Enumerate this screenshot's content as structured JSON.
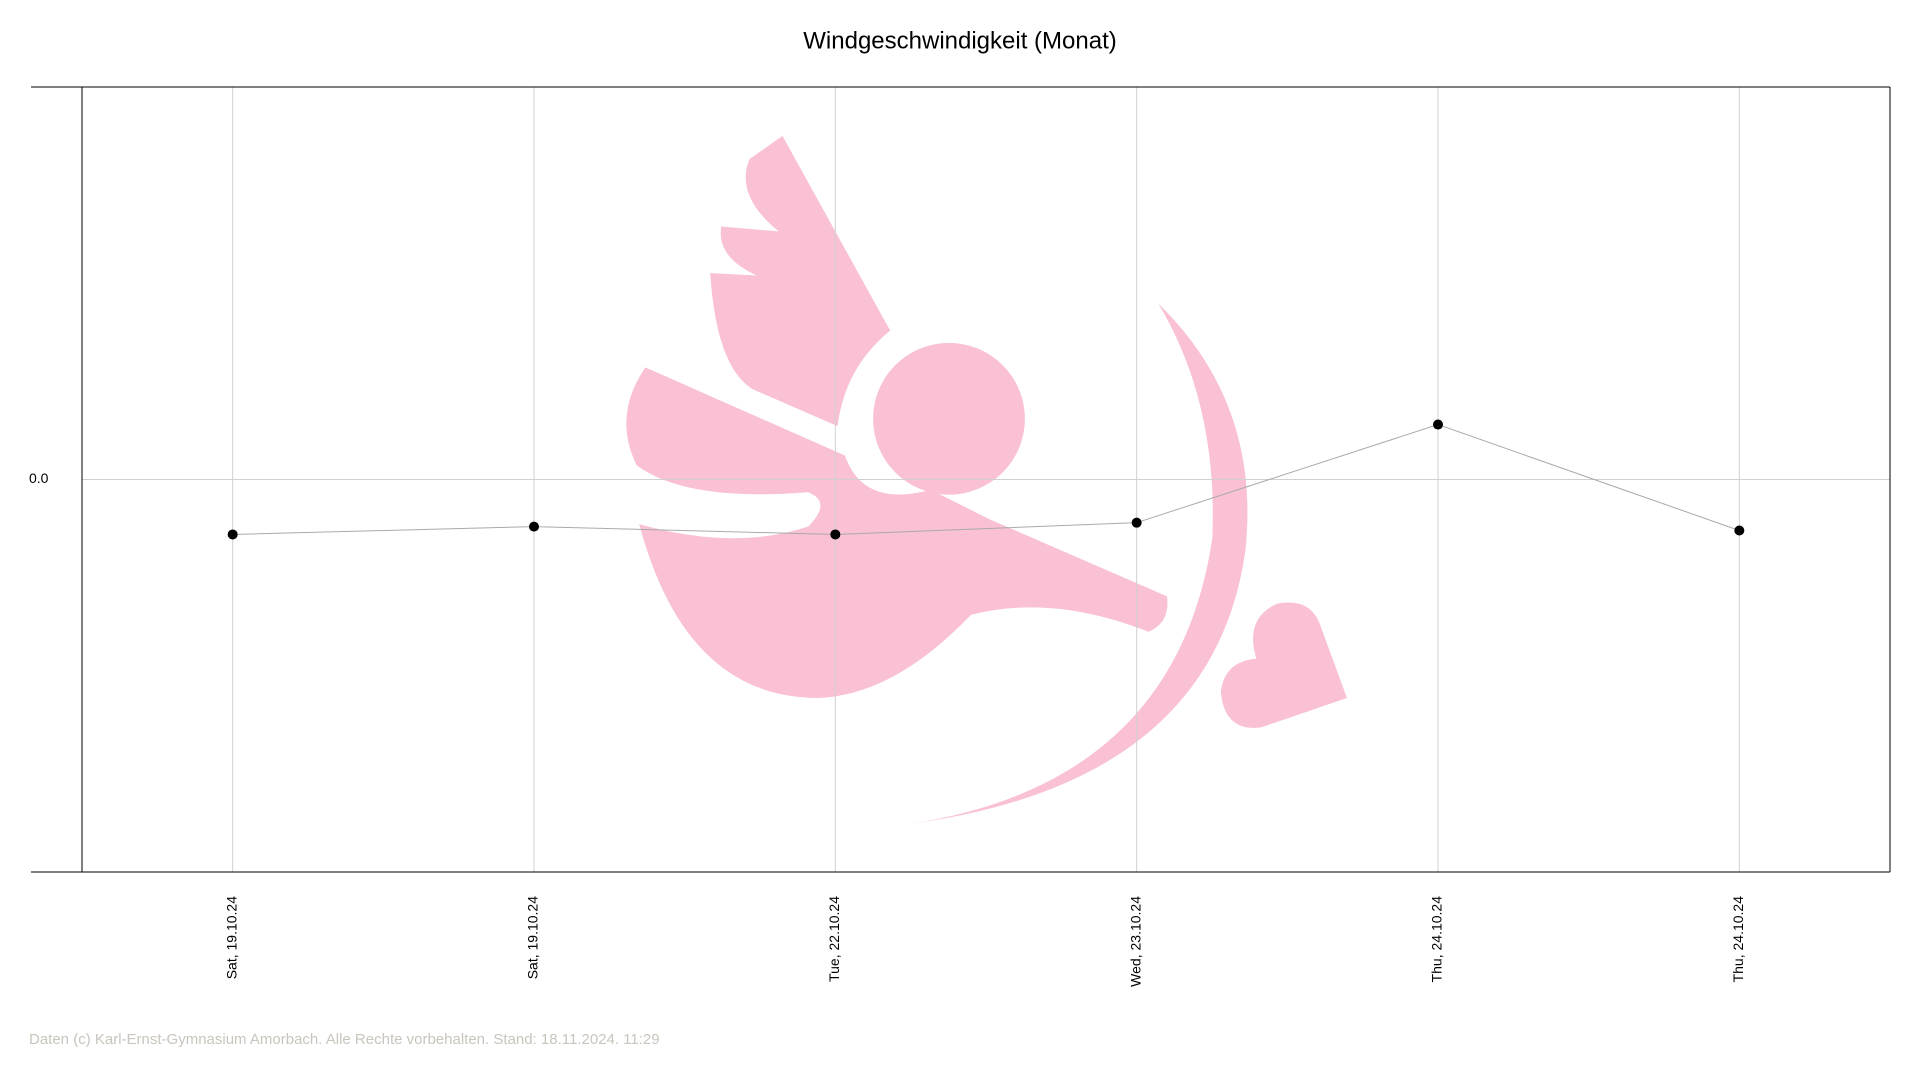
{
  "chart_data": {
    "type": "line",
    "title": "Windgeschwindigkeit (Monat)",
    "categories": [
      "Sat, 19.10.24",
      "Sat, 19.10.24",
      "Tue, 22.10.24",
      "Wed, 23.10.24",
      "Thu, 24.10.24",
      "Thu, 24.10.24"
    ],
    "values": [
      -0.14,
      -0.12,
      -0.14,
      -0.11,
      0.14,
      -0.13
    ],
    "color": "#aaaaaa",
    "marker_color": "#000000",
    "ylim": [
      -1,
      1
    ],
    "yticks": [
      {
        "value": 0,
        "label": "0.0"
      }
    ],
    "grid": true
  },
  "footer": "Daten (c) Karl-Ernst-Gymnasium Amorbach. Alle Rechte vorbehalten. Stand: 18.11.2024. 11:29"
}
